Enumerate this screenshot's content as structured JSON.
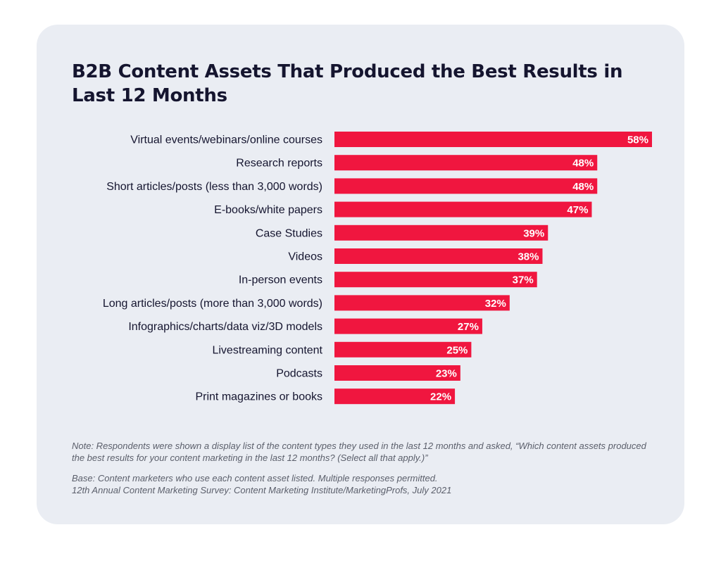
{
  "chart_data": {
    "type": "bar",
    "orientation": "horizontal",
    "title": "B2B Content Assets That Produced the Best Results in Last 12 Months",
    "categories": [
      "Virtual events/webinars/online courses",
      "Research reports",
      "Short articles/posts (less than 3,000 words)",
      "E-books/white papers",
      "Case Studies",
      "Videos",
      "In-person events",
      "Long articles/posts (more than 3,000 words)",
      "Infographics/charts/data viz/3D models",
      "Livestreaming content",
      "Podcasts",
      "Print magazines or books"
    ],
    "values": [
      58,
      48,
      48,
      47,
      39,
      38,
      37,
      32,
      27,
      25,
      23,
      22
    ],
    "value_labels": [
      "58%",
      "48%",
      "48%",
      "47%",
      "39%",
      "38%",
      "37%",
      "32%",
      "27%",
      "25%",
      "23%",
      "22%"
    ],
    "xlim": [
      0,
      58
    ],
    "unit": "%",
    "bar_color": "#f0163f",
    "grid": false,
    "xlabel": "",
    "ylabel": ""
  },
  "notes": {
    "note": "Note: Respondents were shown a display list of the content types they used in the last 12 months and asked, “Which content assets produced the best results for your content marketing in the last 12 months? (Select all that apply.)”",
    "base": "Base: Content marketers who use each content asset listed. Multiple responses permitted.",
    "source": "12th Annual Content Marketing Survey: Content Marketing Institute/MarketingProfs, July 2021"
  },
  "colors": {
    "background": "#ffffff",
    "card": "#eaedf3",
    "title_text": "#15152f",
    "note_text": "#5b5f6b",
    "bar": "#f0163f"
  }
}
